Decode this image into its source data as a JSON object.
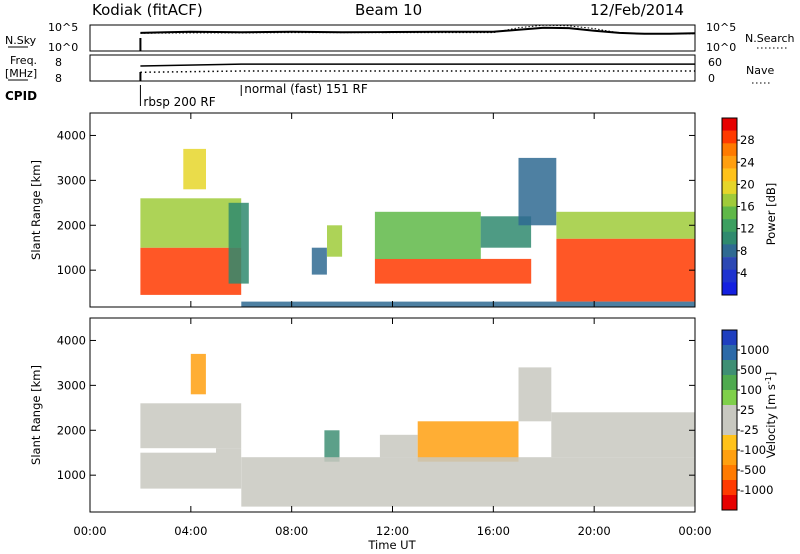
{
  "header": {
    "station": "Kodiak (fitACF)",
    "beam": "Beam 10",
    "date": "12/Feb/2014"
  },
  "top_panel": {
    "nsky_label": "N.Sky",
    "nsky_ticks": [
      "10^5",
      "10^0"
    ],
    "nsearch_ticks": [
      "10^5",
      "10^0"
    ],
    "nsearch_label": "N.Search",
    "freq_label_1": "Freq.",
    "freq_label_2": "[MHz]",
    "freq_tick": "8",
    "freq_range_min": "8",
    "nave_ticks": [
      "60",
      "0"
    ],
    "nave_label": "Nave",
    "cpid_label": "CPID",
    "cpid_segments": [
      {
        "label": "rbsp 200 RF",
        "start_hour": 2,
        "end_hour": 6
      },
      {
        "label": "normal (fast) 151 RF",
        "start_hour": 6,
        "end_hour": 24
      }
    ]
  },
  "axes": {
    "xlabel": "Time UT",
    "x_ticks": [
      "00:00",
      "04:00",
      "08:00",
      "12:00",
      "16:00",
      "20:00",
      "00:00"
    ],
    "ylabel_html": "Slant Range [km]",
    "y_ticks": [
      "4000",
      "3000",
      "2000",
      "1000"
    ]
  },
  "power_colorbar": {
    "title": "Power [dB]",
    "ticks": [
      "28",
      "24",
      "20",
      "16",
      "12",
      "8",
      "4"
    ],
    "colors": [
      "#e60000",
      "#ff3a00",
      "#ff7a00",
      "#ff9f10",
      "#ffc21a",
      "#e6d62a",
      "#9fcb3a",
      "#5fb848",
      "#3c9f60",
      "#2f8a6e",
      "#2f6a92",
      "#2c48b4",
      "#1f33cf",
      "#1420e0"
    ]
  },
  "velocity_colorbar": {
    "title": "Velocity [m s",
    "title_sup": "-1",
    "title_end": "]",
    "ticks": [
      "1000",
      "500",
      "100",
      "25",
      "-25",
      "-100",
      "-500",
      "-1000"
    ],
    "colors": [
      "#1f3fbf",
      "#2c6aa8",
      "#3f8f74",
      "#4faa4f",
      "#7fd04a",
      "#c8c8c0",
      "#c8c8c0",
      "#ffc21a",
      "#ffa010",
      "#ff7a00",
      "#ff3a00",
      "#e60000"
    ]
  },
  "chart_data": [
    {
      "type": "line",
      "title": "N.Sky / N.Search",
      "x_unit": "hours UT",
      "y_scale": "log",
      "ylim": [
        1,
        100000
      ],
      "series": [
        {
          "name": "N.Sky",
          "style": "solid",
          "x": [
            2,
            3,
            4,
            5,
            6,
            8,
            10,
            12,
            14,
            16,
            17,
            18,
            19,
            20,
            21,
            22,
            23,
            24
          ],
          "values": [
            3000,
            4000,
            5000,
            4500,
            4000,
            5000,
            4000,
            4500,
            5000,
            5000,
            12000,
            30000,
            25000,
            8000,
            3000,
            2000,
            2000,
            2500
          ]
        },
        {
          "name": "N.Search",
          "style": "dotted",
          "x": [
            2,
            4,
            6,
            8,
            12,
            16,
            17,
            18,
            19,
            20,
            21,
            22,
            24
          ],
          "values": [
            2500,
            3000,
            3000,
            3500,
            3500,
            3500,
            30000,
            90000,
            70000,
            20000,
            3000,
            2000,
            2000
          ]
        }
      ]
    },
    {
      "type": "line",
      "title": "Freq. / Nave",
      "x_unit": "hours UT",
      "series": [
        {
          "name": "Freq.",
          "style": "solid",
          "x": [
            2,
            6,
            24
          ],
          "values": [
            10.3,
            10.6,
            10.6
          ]
        },
        {
          "name": "Nave",
          "style": "dotted",
          "x": [
            2,
            6,
            24
          ],
          "values": [
            20,
            23,
            23
          ]
        }
      ]
    },
    {
      "type": "heatmap",
      "title": "Power",
      "x_unit": "hours UT",
      "y_unit": "km",
      "xlim": [
        0,
        24
      ],
      "ylim": [
        180,
        4500
      ],
      "zlabel": "Power [dB]",
      "zlim": [
        0,
        32
      ],
      "regions": [
        {
          "t0": 2.0,
          "t1": 6.0,
          "r0": 450,
          "r1": 1500,
          "value": 28
        },
        {
          "t0": 2.0,
          "t1": 6.0,
          "r0": 1500,
          "r1": 2600,
          "value": 18
        },
        {
          "t0": 3.7,
          "t1": 4.6,
          "r0": 2800,
          "r1": 3700,
          "value": 20
        },
        {
          "t0": 5.5,
          "t1": 6.3,
          "r0": 700,
          "r1": 2500,
          "value": 10
        },
        {
          "t0": 8.8,
          "t1": 9.4,
          "r0": 900,
          "r1": 1500,
          "value": 8
        },
        {
          "t0": 9.4,
          "t1": 10.0,
          "r0": 1300,
          "r1": 2000,
          "value": 18
        },
        {
          "t0": 11.3,
          "t1": 17.5,
          "r0": 700,
          "r1": 1250,
          "value": 28
        },
        {
          "t0": 11.3,
          "t1": 15.5,
          "r0": 1250,
          "r1": 2300,
          "value": 14
        },
        {
          "t0": 15.5,
          "t1": 17.5,
          "r0": 1500,
          "r1": 2200,
          "value": 10
        },
        {
          "t0": 17.0,
          "t1": 18.5,
          "r0": 2000,
          "r1": 3500,
          "value": 8
        },
        {
          "t0": 18.5,
          "t1": 24.0,
          "r0": 300,
          "r1": 1700,
          "value": 28
        },
        {
          "t0": 18.5,
          "t1": 24.0,
          "r0": 1700,
          "r1": 2300,
          "value": 16
        },
        {
          "t0": 6.0,
          "t1": 24.0,
          "r0": 180,
          "r1": 300,
          "value": 8
        }
      ]
    },
    {
      "type": "heatmap",
      "title": "Velocity",
      "x_unit": "hours UT",
      "y_unit": "km",
      "xlim": [
        0,
        24
      ],
      "ylim": [
        180,
        4500
      ],
      "zlabel": "Velocity [m s-1]",
      "zlim": [
        -1000,
        1000
      ],
      "regions": [
        {
          "t0": 2.0,
          "t1": 5.0,
          "r0": 700,
          "r1": 1500,
          "value": 0
        },
        {
          "t0": 5.0,
          "t1": 6.0,
          "r0": 700,
          "r1": 1600,
          "value": 100
        },
        {
          "t0": 4.0,
          "t1": 4.6,
          "r0": 2800,
          "r1": 3700,
          "value": -500
        },
        {
          "t0": 2.0,
          "t1": 6.0,
          "r0": 1600,
          "r1": 2600,
          "value": -100
        },
        {
          "t0": 9.3,
          "t1": 9.9,
          "r0": 1300,
          "r1": 2000,
          "value": 500
        },
        {
          "t0": 11.5,
          "t1": 13.0,
          "r0": 1400,
          "r1": 1900,
          "value": 100
        },
        {
          "t0": 13.0,
          "t1": 17.0,
          "r0": 1300,
          "r1": 2200,
          "value": -500
        },
        {
          "t0": 6.0,
          "t1": 24.0,
          "r0": 300,
          "r1": 1400,
          "value": 0
        },
        {
          "t0": 17.0,
          "t1": 18.3,
          "r0": 2200,
          "r1": 3400,
          "value": 100
        },
        {
          "t0": 18.3,
          "t1": 24.0,
          "r0": 1400,
          "r1": 2400,
          "value": 0
        }
      ]
    }
  ]
}
